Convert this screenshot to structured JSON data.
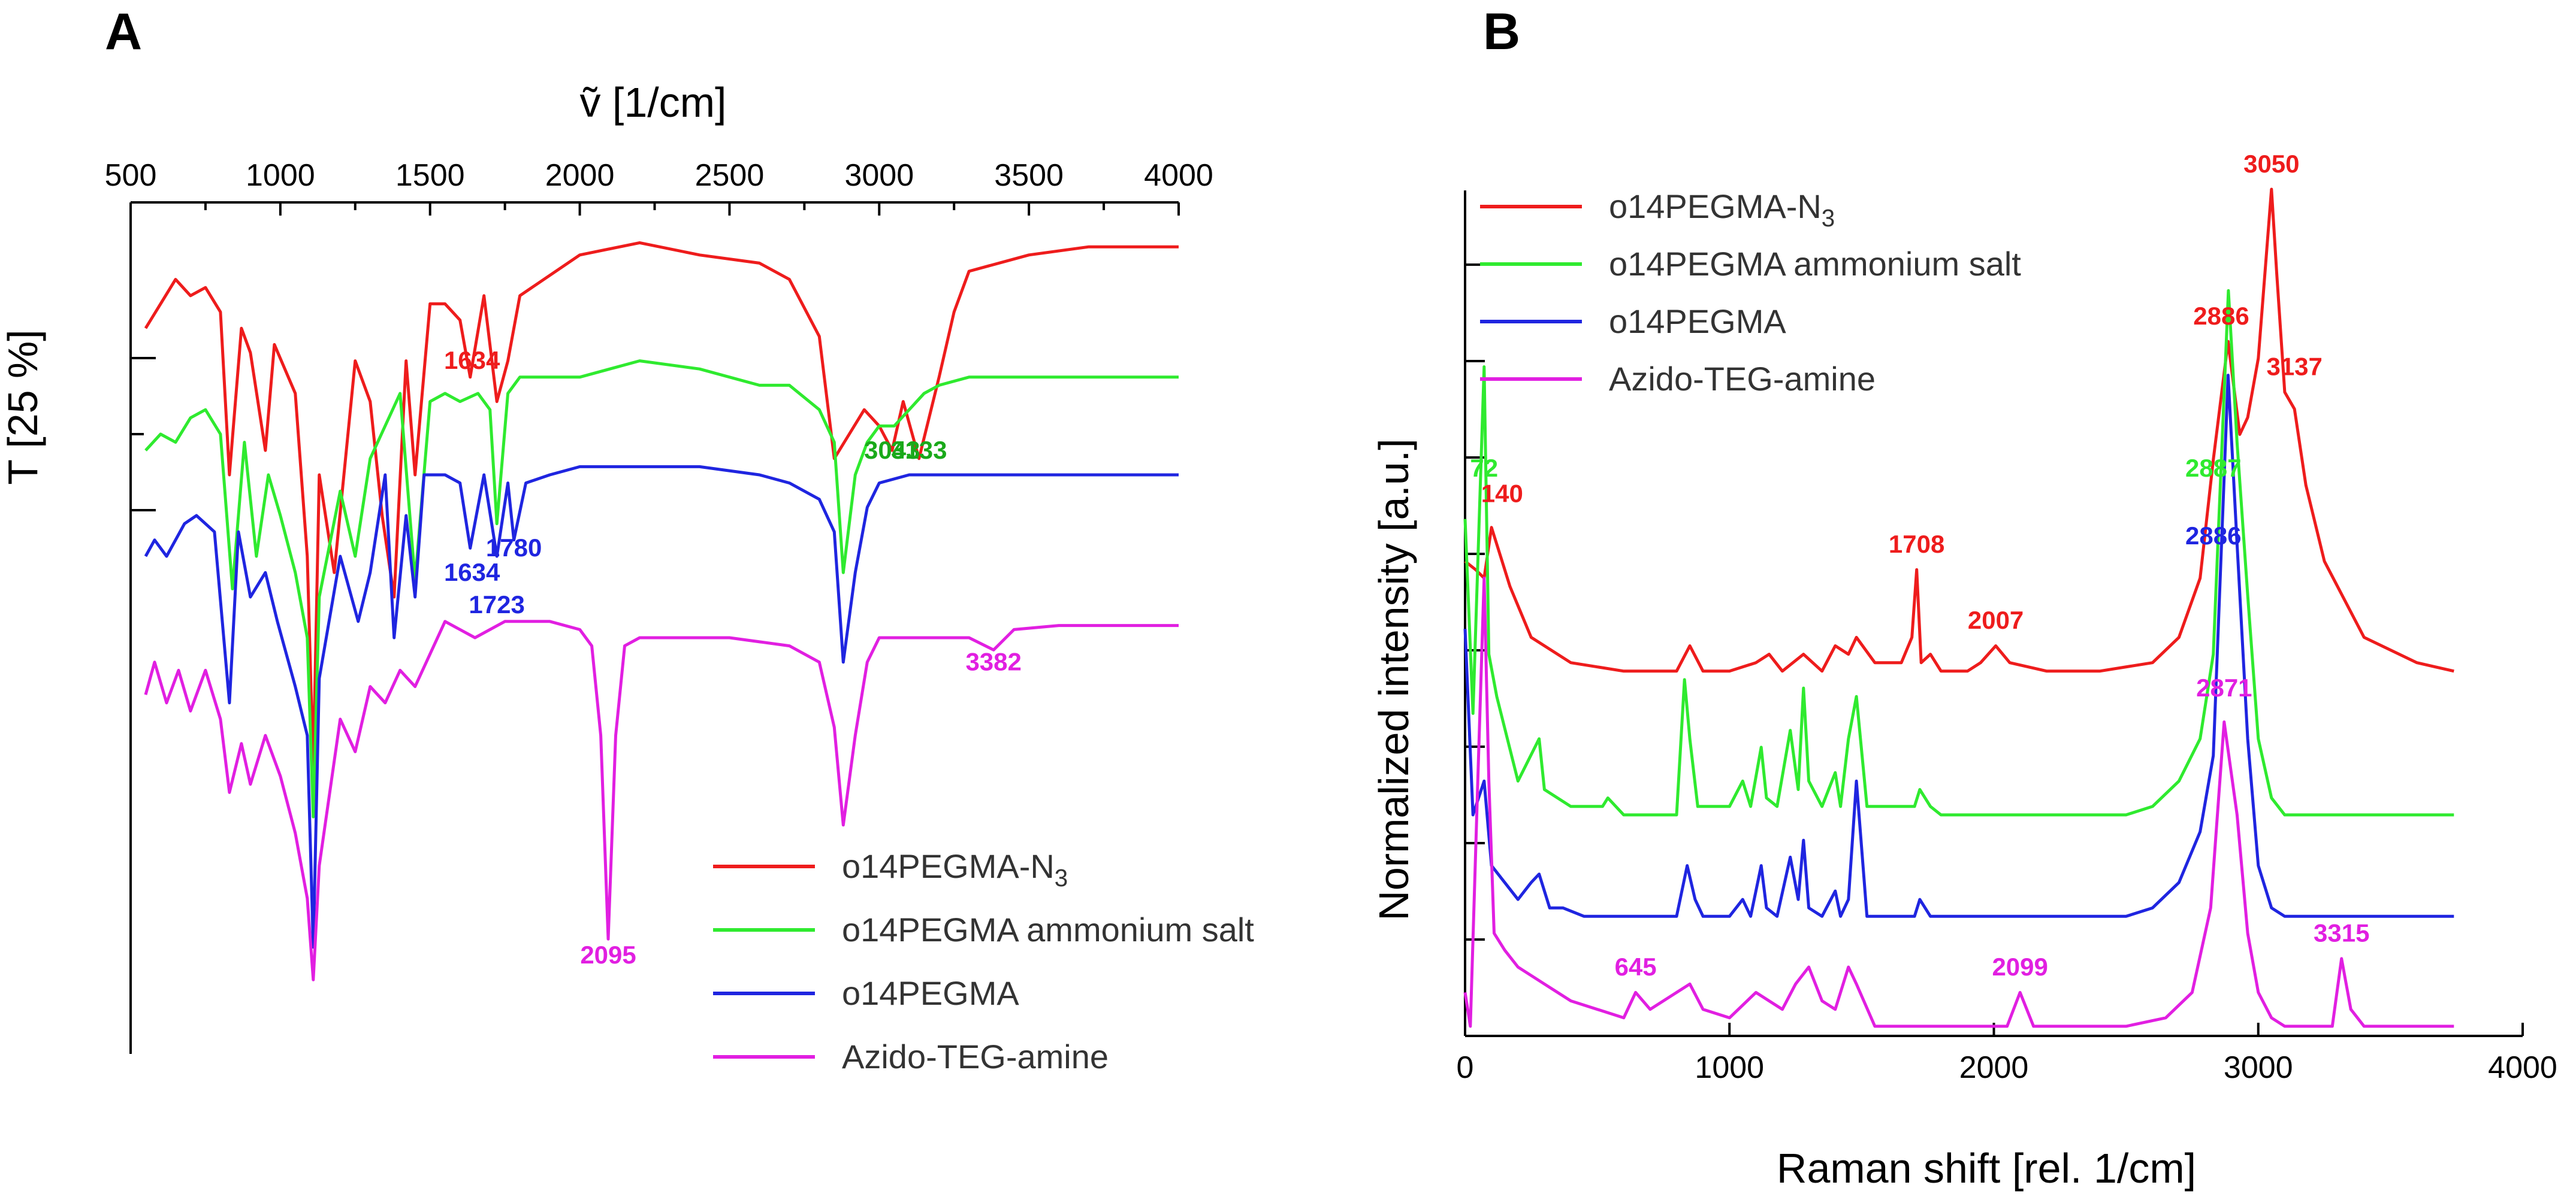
{
  "chart_data": [
    {
      "panel": "A",
      "type": "line",
      "title": "",
      "xlabel": "ṽ [1/cm]",
      "ylabel": "T [25 %]",
      "xlim": [
        500,
        4000
      ],
      "xticks": [
        500,
        1000,
        1500,
        2000,
        2500,
        3000,
        3500,
        4000
      ],
      "ylim": [
        0,
        100
      ],
      "series": [
        {
          "name": "o14PEGMA-N₃",
          "color": "#ee1c1c",
          "x": [
            550,
            600,
            650,
            700,
            750,
            800,
            830,
            870,
            900,
            950,
            980,
            1050,
            1090,
            1110,
            1130,
            1180,
            1250,
            1300,
            1340,
            1380,
            1420,
            1450,
            1500,
            1550,
            1600,
            1634,
            1680,
            1723,
            1760,
            1800,
            2000,
            2200,
            2400,
            2600,
            2700,
            2800,
            2850,
            2900,
            2950,
            3000,
            3043,
            3080,
            3133,
            3200,
            3250,
            3300,
            3500,
            3700,
            4000
          ],
          "y": [
            88,
            91,
            94,
            92,
            93,
            90,
            70,
            88,
            85,
            73,
            86,
            80,
            60,
            34,
            70,
            58,
            84,
            79,
            65,
            55,
            84,
            70,
            91,
            91,
            89,
            82,
            92,
            79,
            84,
            92,
            97,
            98.5,
            97,
            96,
            94,
            87,
            72,
            75,
            78,
            76,
            73,
            79,
            72,
            82,
            90,
            95,
            97,
            98,
            98
          ]
        },
        {
          "name": "o14PEGMA ammonium salt",
          "color": "#2fea2f",
          "x": [
            550,
            600,
            650,
            700,
            750,
            800,
            840,
            880,
            920,
            960,
            1000,
            1050,
            1090,
            1110,
            1130,
            1200,
            1250,
            1300,
            1400,
            1450,
            1500,
            1550,
            1600,
            1660,
            1700,
            1723,
            1760,
            1800,
            2000,
            2200,
            2400,
            2600,
            2700,
            2800,
            2850,
            2880,
            2920,
            2960,
            3000,
            3050,
            3100,
            3150,
            3200,
            3300,
            3500,
            3700,
            4000
          ],
          "y": [
            73,
            75,
            74,
            77,
            78,
            75,
            56,
            74,
            60,
            70,
            65,
            58,
            50,
            28,
            55,
            68,
            60,
            72,
            80,
            57,
            79,
            80,
            79,
            80,
            78,
            64,
            80,
            82,
            82,
            84,
            83,
            81,
            81,
            78,
            74,
            58,
            70,
            74,
            76,
            76,
            78,
            80,
            81,
            82,
            82,
            82,
            82
          ]
        },
        {
          "name": "o14PEGMA",
          "color": "#1f25e0",
          "x": [
            550,
            580,
            620,
            680,
            720,
            780,
            830,
            860,
            900,
            950,
            990,
            1050,
            1090,
            1110,
            1130,
            1200,
            1260,
            1300,
            1350,
            1380,
            1420,
            1450,
            1480,
            1550,
            1600,
            1634,
            1680,
            1723,
            1760,
            1780,
            1820,
            1900,
            2000,
            2200,
            2400,
            2600,
            2700,
            2800,
            2850,
            2880,
            2920,
            2960,
            3000,
            3100,
            3300,
            3500,
            3700,
            4000
          ],
          "y": [
            60,
            62,
            60,
            64,
            65,
            63,
            42,
            63,
            55,
            58,
            52,
            44,
            38,
            12,
            45,
            60,
            52,
            58,
            70,
            50,
            65,
            55,
            70,
            70,
            69,
            61,
            70,
            60,
            69,
            62,
            69,
            70,
            71,
            71,
            71,
            70,
            69,
            67,
            63,
            47,
            58,
            66,
            69,
            70,
            70,
            70,
            70,
            70
          ]
        },
        {
          "name": "Azido-TEG-amine",
          "color": "#e11fe1",
          "x": [
            550,
            580,
            620,
            660,
            700,
            750,
            800,
            830,
            870,
            900,
            950,
            1000,
            1050,
            1090,
            1110,
            1130,
            1200,
            1250,
            1300,
            1350,
            1400,
            1450,
            1550,
            1650,
            1750,
            1800,
            1900,
            2000,
            2040,
            2070,
            2095,
            2120,
            2150,
            2200,
            2300,
            2500,
            2700,
            2800,
            2850,
            2880,
            2920,
            2960,
            3000,
            3100,
            3300,
            3382,
            3450,
            3600,
            3800,
            4000
          ],
          "y": [
            43,
            47,
            42,
            46,
            41,
            46,
            40,
            31,
            37,
            32,
            38,
            33,
            26,
            18,
            8,
            22,
            40,
            36,
            44,
            42,
            46,
            44,
            52,
            50,
            52,
            52,
            52,
            51,
            49,
            38,
            13,
            38,
            49,
            50,
            50,
            50,
            49,
            47,
            39,
            27,
            38,
            47,
            50,
            50,
            50,
            48.5,
            51,
            51.5,
            51.5,
            51.5
          ]
        }
      ],
      "annotations": [
        {
          "text": "1634",
          "x": 1640,
          "y": 83,
          "color": "#ee1c1c"
        },
        {
          "text": "3043",
          "x": 3043,
          "y": 72,
          "color": "#1aa91a"
        },
        {
          "text": "3133",
          "x": 3133,
          "y": 72,
          "color": "#1aa91a"
        },
        {
          "text": "1634",
          "x": 1640,
          "y": 57,
          "color": "#1f25e0"
        },
        {
          "text": "1780",
          "x": 1780,
          "y": 60,
          "color": "#1f25e0"
        },
        {
          "text": "1723",
          "x": 1723,
          "y": 53,
          "color": "#1f25e0"
        },
        {
          "text": "2095",
          "x": 2095,
          "y": 10,
          "color": "#e11fe1"
        },
        {
          "text": "3382",
          "x": 3382,
          "y": 46,
          "color": "#e11fe1"
        }
      ],
      "legend": {
        "position": "bottom-right",
        "items": [
          "o14PEGMA-N₃",
          "o14PEGMA ammonium salt",
          "o14PEGMA",
          "Azido-TEG-amine"
        ]
      }
    },
    {
      "panel": "B",
      "type": "line",
      "title": "",
      "xlabel": "Raman shift [rel. 1/cm]",
      "ylabel": "Normalized intensity [a.u.]",
      "xlim": [
        0,
        4000
      ],
      "xticks": [
        0,
        1000,
        2000,
        3000,
        4000
      ],
      "ylim": [
        0,
        100
      ],
      "series": [
        {
          "name": "o14PEGMA-N₃",
          "color": "#ee1c1c",
          "x": [
            0,
            40,
            72,
            100,
            140,
            170,
            250,
            400,
            600,
            800,
            850,
            900,
            1000,
            1100,
            1150,
            1200,
            1280,
            1350,
            1400,
            1450,
            1480,
            1550,
            1650,
            1690,
            1708,
            1725,
            1760,
            1800,
            1900,
            1950,
            2007,
            2060,
            2200,
            2400,
            2600,
            2700,
            2780,
            2830,
            2886,
            2930,
            2960,
            3000,
            3030,
            3050,
            3070,
            3100,
            3137,
            3180,
            3250,
            3400,
            3600,
            3740
          ],
          "y": [
            56,
            55,
            54,
            60,
            56,
            53,
            47,
            44,
            43,
            43,
            46,
            43,
            43,
            44,
            45,
            43,
            45,
            43,
            46,
            45,
            47,
            44,
            44,
            47,
            55,
            44,
            45,
            43,
            43,
            44,
            46,
            44,
            43,
            43,
            44,
            47,
            54,
            68,
            82,
            71,
            73,
            80,
            92,
            100,
            90,
            76,
            74,
            65,
            56,
            47,
            44,
            43
          ]
        },
        {
          "name": "o14PEGMA ammonium salt",
          "color": "#2fea2f",
          "x": [
            0,
            30,
            72,
            90,
            120,
            200,
            280,
            300,
            400,
            520,
            540,
            600,
            800,
            830,
            850,
            880,
            1000,
            1050,
            1080,
            1120,
            1140,
            1180,
            1230,
            1260,
            1280,
            1300,
            1350,
            1400,
            1420,
            1450,
            1480,
            1520,
            1700,
            1720,
            1760,
            1800,
            2000,
            2200,
            2500,
            2600,
            2700,
            2780,
            2830,
            2887,
            2920,
            2960,
            3000,
            3050,
            3100,
            3300,
            3500,
            3740
          ],
          "y": [
            61,
            38,
            79,
            45,
            40,
            30,
            35,
            29,
            27,
            27,
            28,
            26,
            26,
            42,
            35,
            27,
            27,
            30,
            27,
            34,
            28,
            27,
            36,
            29,
            41,
            30,
            27,
            31,
            27,
            35,
            40,
            27,
            27,
            29,
            27,
            26,
            26,
            26,
            26,
            27,
            30,
            35,
            45,
            88,
            70,
            52,
            35,
            28,
            26,
            26,
            26,
            26
          ]
        },
        {
          "name": "o14PEGMA",
          "color": "#1f25e0",
          "x": [
            0,
            30,
            72,
            100,
            150,
            200,
            250,
            280,
            320,
            370,
            450,
            600,
            800,
            840,
            870,
            900,
            1000,
            1050,
            1080,
            1120,
            1140,
            1180,
            1230,
            1260,
            1280,
            1300,
            1350,
            1400,
            1420,
            1450,
            1480,
            1520,
            1700,
            1720,
            1760,
            1800,
            2000,
            2200,
            2500,
            2600,
            2700,
            2780,
            2830,
            2886,
            2920,
            2960,
            3000,
            3050,
            3100,
            3300,
            3500,
            3740
          ],
          "y": [
            48,
            26,
            30,
            20,
            18,
            16,
            18,
            19,
            15,
            15,
            14,
            14,
            14,
            20,
            16,
            14,
            14,
            16,
            14,
            20,
            15,
            14,
            21,
            16,
            23,
            15,
            14,
            17,
            14,
            16,
            30,
            14,
            14,
            16,
            14,
            14,
            14,
            14,
            14,
            15,
            18,
            24,
            33,
            78,
            58,
            35,
            20,
            15,
            14,
            14,
            14,
            14
          ]
        },
        {
          "name": "Azido-TEG-amine",
          "color": "#e11fe1",
          "x": [
            0,
            20,
            50,
            72,
            90,
            110,
            150,
            200,
            300,
            400,
            500,
            600,
            645,
            700,
            800,
            850,
            900,
            1000,
            1100,
            1150,
            1200,
            1250,
            1300,
            1350,
            1400,
            1450,
            1480,
            1550,
            1700,
            1900,
            2050,
            2099,
            2150,
            2300,
            2500,
            2650,
            2750,
            2820,
            2871,
            2920,
            2960,
            3000,
            3050,
            3100,
            3200,
            3280,
            3315,
            3350,
            3400,
            3500,
            3740
          ],
          "y": [
            5,
            1,
            32,
            54,
            30,
            12,
            10,
            8,
            6,
            4,
            3,
            2,
            5,
            3,
            5,
            6,
            3,
            2,
            5,
            4,
            3,
            6,
            8,
            4,
            3,
            8,
            6,
            1,
            1,
            1,
            1,
            5,
            1,
            1,
            1,
            2,
            5,
            15,
            37,
            26,
            12,
            5,
            2,
            1,
            1,
            1,
            9,
            3,
            1,
            1,
            1
          ]
        }
      ],
      "annotations": [
        {
          "text": "3050",
          "x": 3050,
          "y": 102,
          "color": "#ee1c1c"
        },
        {
          "text": "2886",
          "x": 2860,
          "y": 84,
          "color": "#ee1c1c"
        },
        {
          "text": "3137",
          "x": 3137,
          "y": 78,
          "color": "#ee1c1c"
        },
        {
          "text": "140",
          "x": 140,
          "y": 63,
          "color": "#ee1c1c"
        },
        {
          "text": "1708",
          "x": 1708,
          "y": 57,
          "color": "#ee1c1c"
        },
        {
          "text": "2007",
          "x": 2007,
          "y": 48,
          "color": "#ee1c1c"
        },
        {
          "text": "72",
          "x": 72,
          "y": 66,
          "color": "#2fea2f"
        },
        {
          "text": "2887",
          "x": 2830,
          "y": 66,
          "color": "#2fea2f"
        },
        {
          "text": "2886",
          "x": 2830,
          "y": 58,
          "color": "#1f25e0"
        },
        {
          "text": "2871",
          "x": 2871,
          "y": 40,
          "color": "#e11fe1"
        },
        {
          "text": "645",
          "x": 645,
          "y": 7,
          "color": "#e11fe1"
        },
        {
          "text": "2099",
          "x": 2099,
          "y": 7,
          "color": "#e11fe1"
        },
        {
          "text": "3315",
          "x": 3315,
          "y": 11,
          "color": "#e11fe1"
        }
      ],
      "legend": {
        "position": "top-left",
        "items": [
          "o14PEGMA-N₃",
          "o14PEGMA ammonium salt",
          "o14PEGMA",
          "Azido-TEG-amine"
        ]
      }
    }
  ]
}
